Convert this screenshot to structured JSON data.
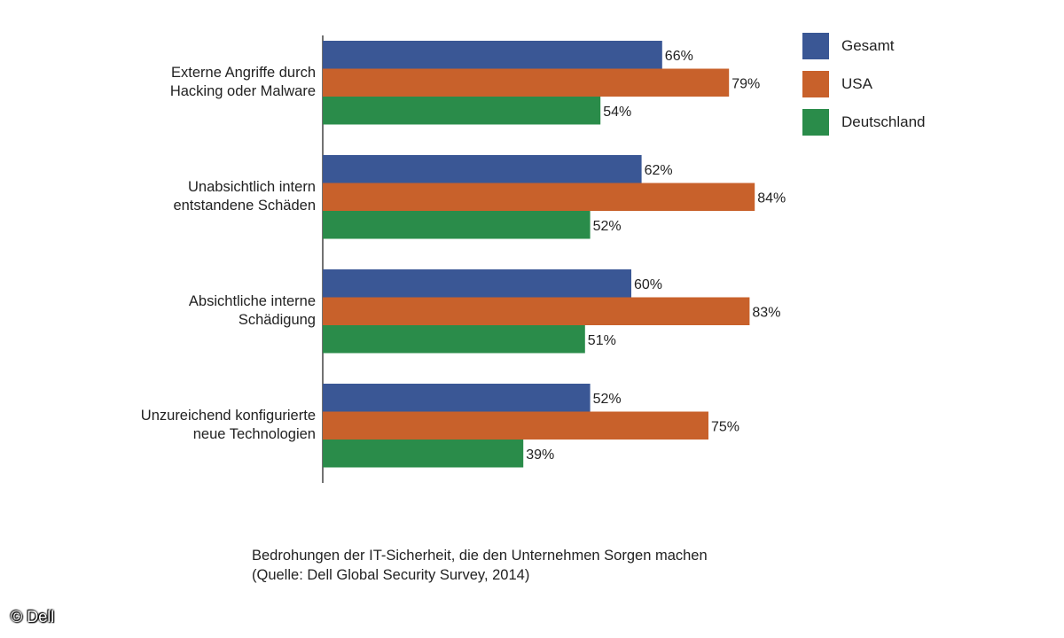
{
  "chart_data": {
    "type": "bar",
    "orientation": "horizontal",
    "categories": [
      [
        "Externe Angriffe durch",
        "Hacking oder Malware"
      ],
      [
        "Unabsichtlich intern",
        "entstandene Schäden"
      ],
      [
        "Absichtliche interne",
        "Schädigung"
      ],
      [
        "Unzureichend konfigurierte",
        "neue Technologien"
      ]
    ],
    "series": [
      {
        "name": "Gesamt",
        "color": "#3a5795",
        "values": [
          66,
          62,
          60,
          52
        ]
      },
      {
        "name": "USA",
        "color": "#c8612b",
        "values": [
          79,
          84,
          83,
          75
        ]
      },
      {
        "name": "Deutschland",
        "color": "#2a8c4a",
        "values": [
          54,
          52,
          51,
          39
        ]
      }
    ],
    "value_suffix": "%",
    "xlim": [
      0,
      100
    ],
    "legend_position": "top-right",
    "grid": false
  },
  "caption": {
    "line1": "Bedrohungen der IT-Sicherheit, die den Unternehmen Sorgen machen",
    "line2": "(Quelle: Dell Global Security Survey, 2014)"
  },
  "copyright": "© Dell"
}
